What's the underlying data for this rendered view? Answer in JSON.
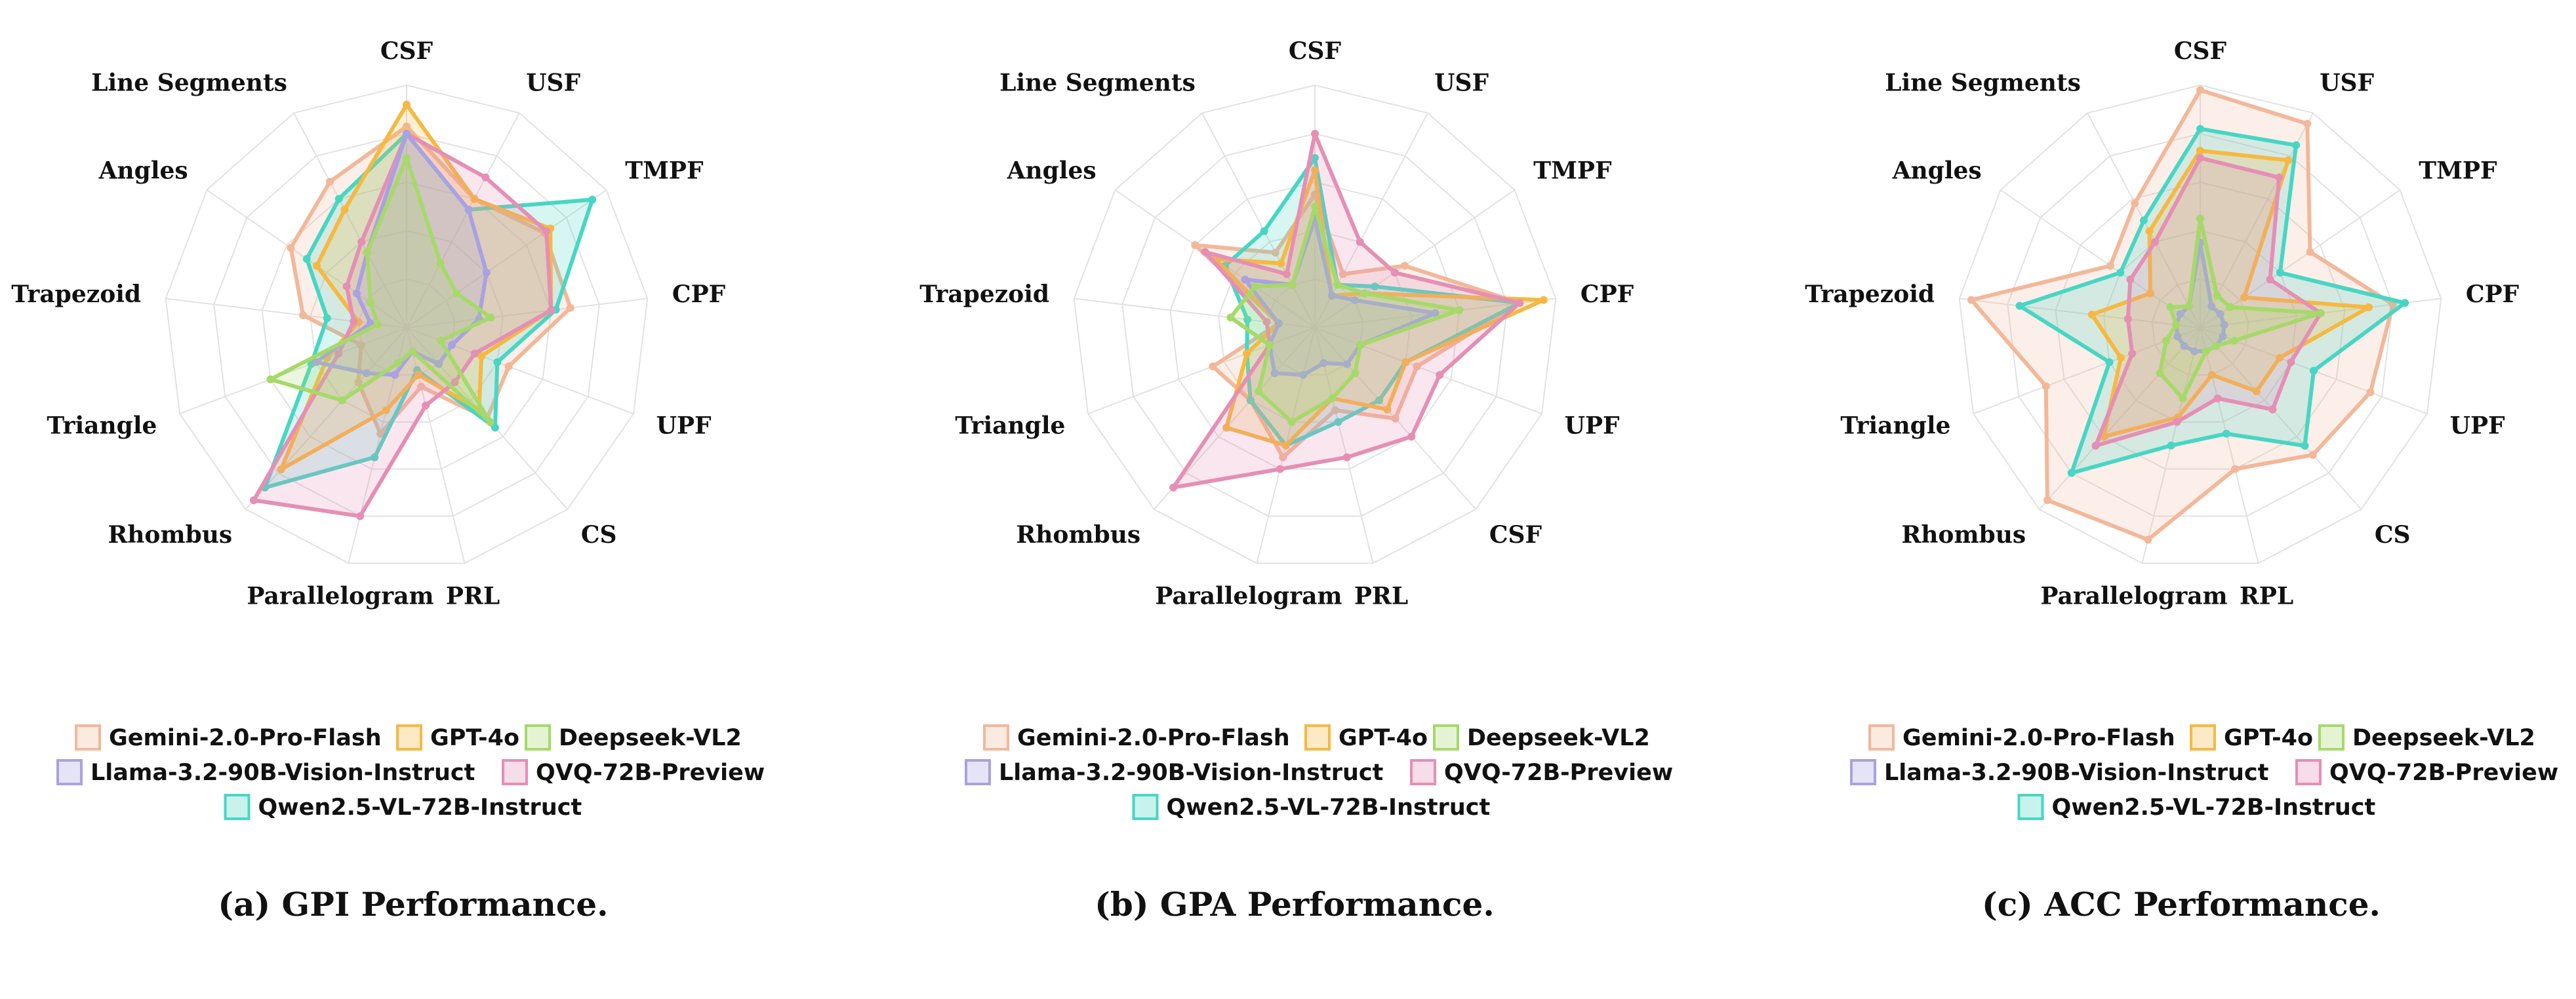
{
  "colors": {
    "Gemini-2.0-Pro-Flash": "#f2b899",
    "GPT-4o": "#f5b942",
    "Deepseek-VL2": "#a6d96a",
    "Llama-3.2-90B-Vision-Instruct": "#a9a2e0",
    "QVQ-72B-Preview": "#e58fb5",
    "Qwen2.5-VL-72B-Instruct": "#48d6c4"
  },
  "legend": [
    "Gemini-2.0-Pro-Flash",
    "GPT-4o",
    "Deepseek-VL2",
    "Llama-3.2-90B-Vision-Instruct",
    "QVQ-72B-Preview",
    "Qwen2.5-VL-72B-Instruct"
  ],
  "chart_data": [
    {
      "type": "radar",
      "caption": "(a) GPI Performance.",
      "axes": [
        "CSF",
        "USF",
        "TMPF",
        "CPF",
        "UPF",
        "CS",
        "PRL",
        "Parallelogram",
        "Rhombus",
        "Triangle",
        "Trapezoid",
        "Angles",
        "Line Segments"
      ],
      "rmax": 1,
      "grid": true,
      "series": [
        {
          "name": "Gemini-2.0-Pro-Flash",
          "values": [
            0.83,
            0.6,
            0.69,
            0.68,
            0.45,
            0.5,
            0.25,
            0.45,
            0.3,
            0.2,
            0.43,
            0.58,
            0.68
          ]
        },
        {
          "name": "GPT-4o",
          "values": [
            0.92,
            0.6,
            0.72,
            0.6,
            0.33,
            0.45,
            0.2,
            0.35,
            0.78,
            0.35,
            0.2,
            0.45,
            0.55
          ]
        },
        {
          "name": "Deepseek-VL2",
          "values": [
            0.7,
            0.3,
            0.25,
            0.35,
            0.15,
            0.52,
            0.1,
            0.15,
            0.4,
            0.6,
            0.12,
            0.18,
            0.35
          ]
        },
        {
          "name": "Llama-3.2-90B-Vision-Instruct",
          "values": [
            0.8,
            0.55,
            0.4,
            0.3,
            0.2,
            0.2,
            0.1,
            0.2,
            0.25,
            0.4,
            0.15,
            0.25,
            0.35
          ]
        },
        {
          "name": "QVQ-72B-Preview",
          "values": [
            0.8,
            0.7,
            0.7,
            0.6,
            0.3,
            0.3,
            0.33,
            0.8,
            0.95,
            0.3,
            0.22,
            0.3,
            0.4
          ]
        },
        {
          "name": "Qwen2.5-VL-72B-Instruct",
          "values": [
            0.8,
            0.55,
            0.93,
            0.62,
            0.4,
            0.55,
            0.18,
            0.55,
            0.88,
            0.42,
            0.33,
            0.5,
            0.6
          ]
        }
      ]
    },
    {
      "type": "radar",
      "caption": "(b) GPA Performance.",
      "axes": [
        "CSF",
        "USF",
        "TMPF",
        "CPF",
        "UPF",
        "CSF",
        "PRL",
        "Parallelogram",
        "Rhombus",
        "Triangle",
        "Trapezoid",
        "Angles",
        "Line Segments"
      ],
      "rmax": 1,
      "grid": true,
      "series": [
        {
          "name": "Gemini-2.0-Pro-Flash",
          "values": [
            0.55,
            0.25,
            0.45,
            0.85,
            0.45,
            0.5,
            0.35,
            0.55,
            0.4,
            0.45,
            0.15,
            0.6,
            0.35
          ]
        },
        {
          "name": "GPT-4o",
          "values": [
            0.65,
            0.15,
            0.25,
            0.95,
            0.4,
            0.45,
            0.3,
            0.5,
            0.55,
            0.3,
            0.15,
            0.5,
            0.3
          ]
        },
        {
          "name": "Deepseek-VL2",
          "values": [
            0.5,
            0.2,
            0.25,
            0.6,
            0.2,
            0.25,
            0.3,
            0.4,
            0.35,
            0.2,
            0.35,
            0.3,
            0.2
          ]
        },
        {
          "name": "Llama-3.2-90B-Vision-Instruct",
          "values": [
            0.45,
            0.15,
            0.2,
            0.5,
            0.2,
            0.2,
            0.15,
            0.2,
            0.25,
            0.2,
            0.15,
            0.35,
            0.2
          ]
        },
        {
          "name": "QVQ-72B-Preview",
          "values": [
            0.8,
            0.4,
            0.4,
            0.85,
            0.55,
            0.6,
            0.55,
            0.6,
            0.88,
            0.2,
            0.2,
            0.55,
            0.25
          ]
        },
        {
          "name": "Qwen2.5-VL-72B-Instruct",
          "values": [
            0.7,
            0.2,
            0.3,
            0.85,
            0.4,
            0.4,
            0.4,
            0.5,
            0.4,
            0.3,
            0.28,
            0.45,
            0.45
          ]
        }
      ]
    },
    {
      "type": "radar",
      "caption": "(c) ACC Performance.",
      "axes": [
        "CSF",
        "USF",
        "TMPF",
        "CPF",
        "UPF",
        "CS",
        "RPL",
        "Parallelogram",
        "Rhombus",
        "Triangle",
        "Trapezoid",
        "Angles",
        "Line Segments"
      ],
      "rmax": 1,
      "grid": true,
      "series": [
        {
          "name": "Gemini-2.0-Pro-Flash",
          "values": [
            0.98,
            0.95,
            0.55,
            0.8,
            0.75,
            0.7,
            0.6,
            0.9,
            0.95,
            0.68,
            0.95,
            0.45,
            0.58
          ]
        },
        {
          "name": "GPT-4o",
          "values": [
            0.73,
            0.78,
            0.22,
            0.7,
            0.35,
            0.35,
            0.2,
            0.38,
            0.6,
            0.35,
            0.45,
            0.25,
            0.45
          ]
        },
        {
          "name": "Deepseek-VL2",
          "values": [
            0.45,
            0.15,
            0.15,
            0.5,
            0.15,
            0.1,
            0.1,
            0.3,
            0.25,
            0.15,
            0.1,
            0.15,
            0.1
          ]
        },
        {
          "name": "Llama-3.2-90B-Vision-Instruct",
          "values": [
            0.35,
            0.1,
            0.1,
            0.1,
            0.1,
            0.1,
            0.1,
            0.1,
            0.1,
            0.1,
            0.1,
            0.1,
            0.1
          ]
        },
        {
          "name": "QVQ-72B-Preview",
          "values": [
            0.7,
            0.7,
            0.35,
            0.5,
            0.4,
            0.45,
            0.3,
            0.4,
            0.65,
            0.3,
            0.3,
            0.35,
            0.4
          ]
        },
        {
          "name": "Qwen2.5-VL-72B-Instruct",
          "values": [
            0.82,
            0.85,
            0.4,
            0.85,
            0.5,
            0.65,
            0.45,
            0.5,
            0.8,
            0.4,
            0.75,
            0.4,
            0.5
          ]
        }
      ]
    }
  ]
}
